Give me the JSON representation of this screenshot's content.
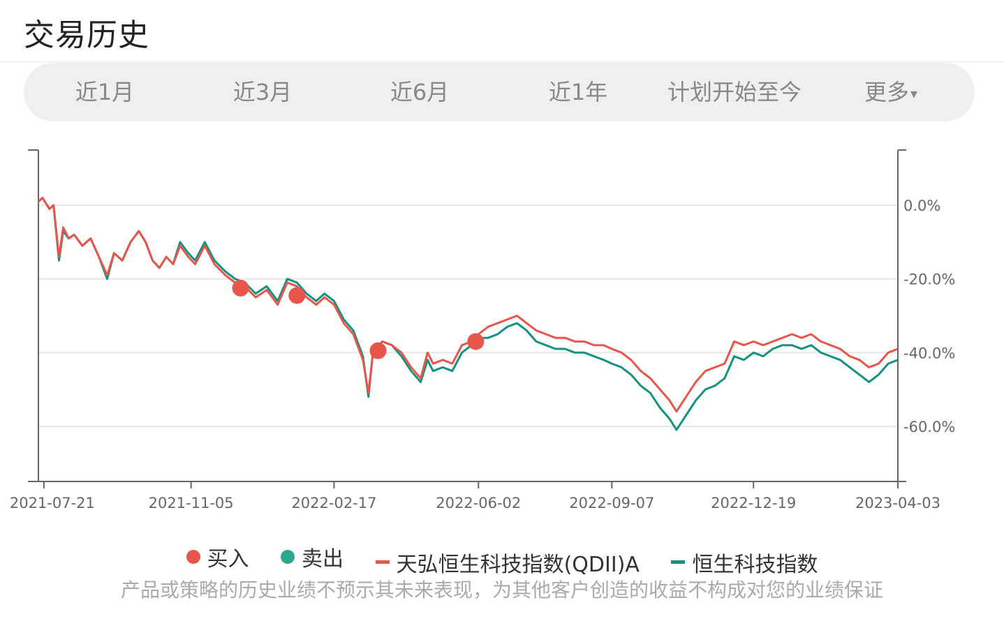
{
  "header": {
    "title": "交易历史"
  },
  "tabs": [
    {
      "label": "近1月"
    },
    {
      "label": "近3月"
    },
    {
      "label": "近6月"
    },
    {
      "label": "近1年"
    },
    {
      "label": "计划开始至今"
    },
    {
      "label": "更多",
      "caret": "▾"
    }
  ],
  "legend": {
    "buy": "买入",
    "sell": "卖出",
    "fund": "天弘恒生科技指数(QDII)A",
    "index": "恒生科技指数"
  },
  "disclaimer": "产品或策略的历史业绩不预示其未来表现，为其他客户创造的收益不构成对您的业绩保证",
  "colors": {
    "fund": "#e8554a",
    "index": "#139280",
    "buy": "#e8554a",
    "sell": "#2aa78f",
    "grid": "#e6e6e6",
    "axis": "#666666"
  },
  "chart_data": {
    "type": "line",
    "x_type": "date",
    "x_range": [
      "2021-07-17",
      "2023-04-03"
    ],
    "y_unit": "%",
    "ylim": [
      -75,
      15
    ],
    "yticks": [
      0,
      -20,
      -40,
      -60
    ],
    "ytick_labels": [
      "0.0%",
      "-20.0%",
      "-40.0%",
      "-60.0%"
    ],
    "xticks": [
      "2021-07-21",
      "2021-11-05",
      "2022-02-17",
      "2022-06-02",
      "2022-09-07",
      "2022-12-19",
      "2023-04-03"
    ],
    "grid": true,
    "legend_position": "bottom",
    "series": [
      {
        "name": "天弘恒生科技指数(QDII)A",
        "values": [
          [
            "2021-07-17",
            1
          ],
          [
            "2021-07-20",
            2
          ],
          [
            "2021-07-25",
            -1
          ],
          [
            "2021-07-28",
            0
          ],
          [
            "2021-08-01",
            -14
          ],
          [
            "2021-08-04",
            -6
          ],
          [
            "2021-08-08",
            -9
          ],
          [
            "2021-08-12",
            -8
          ],
          [
            "2021-08-18",
            -11
          ],
          [
            "2021-08-24",
            -9
          ],
          [
            "2021-08-30",
            -14
          ],
          [
            "2021-09-05",
            -19
          ],
          [
            "2021-09-10",
            -13
          ],
          [
            "2021-09-16",
            -15
          ],
          [
            "2021-09-22",
            -10
          ],
          [
            "2021-09-28",
            -7
          ],
          [
            "2021-10-03",
            -10
          ],
          [
            "2021-10-08",
            -15
          ],
          [
            "2021-10-13",
            -17
          ],
          [
            "2021-10-18",
            -14
          ],
          [
            "2021-10-23",
            -16
          ],
          [
            "2021-10-28",
            -11
          ],
          [
            "2021-11-03",
            -14
          ],
          [
            "2021-11-08",
            -16
          ],
          [
            "2021-11-15",
            -11
          ],
          [
            "2021-11-22",
            -16
          ],
          [
            "2021-11-30",
            -19
          ],
          [
            "2021-12-07",
            -21
          ],
          [
            "2021-12-14",
            -22
          ],
          [
            "2021-12-22",
            -25
          ],
          [
            "2021-12-30",
            -23
          ],
          [
            "2022-01-07",
            -27
          ],
          [
            "2022-01-14",
            -21
          ],
          [
            "2022-01-21",
            -22
          ],
          [
            "2022-01-28",
            -25
          ],
          [
            "2022-02-04",
            -27
          ],
          [
            "2022-02-10",
            -25
          ],
          [
            "2022-02-17",
            -27
          ],
          [
            "2022-02-24",
            -32
          ],
          [
            "2022-03-03",
            -35
          ],
          [
            "2022-03-10",
            -42
          ],
          [
            "2022-03-14",
            -51
          ],
          [
            "2022-03-17",
            -41
          ],
          [
            "2022-03-24",
            -37
          ],
          [
            "2022-03-31",
            -38
          ],
          [
            "2022-04-07",
            -40
          ],
          [
            "2022-04-14",
            -44
          ],
          [
            "2022-04-21",
            -47
          ],
          [
            "2022-04-26",
            -40
          ],
          [
            "2022-04-30",
            -43
          ],
          [
            "2022-05-07",
            -42
          ],
          [
            "2022-05-14",
            -43
          ],
          [
            "2022-05-21",
            -38
          ],
          [
            "2022-05-28",
            -37
          ],
          [
            "2022-06-02",
            -35
          ],
          [
            "2022-06-09",
            -33
          ],
          [
            "2022-06-16",
            -32
          ],
          [
            "2022-06-23",
            -31
          ],
          [
            "2022-06-30",
            -30
          ],
          [
            "2022-07-07",
            -32
          ],
          [
            "2022-07-14",
            -34
          ],
          [
            "2022-07-21",
            -35
          ],
          [
            "2022-07-28",
            -36
          ],
          [
            "2022-08-04",
            -36
          ],
          [
            "2022-08-11",
            -37
          ],
          [
            "2022-08-18",
            -37
          ],
          [
            "2022-08-25",
            -38
          ],
          [
            "2022-09-01",
            -38
          ],
          [
            "2022-09-07",
            -39
          ],
          [
            "2022-09-14",
            -40
          ],
          [
            "2022-09-21",
            -42
          ],
          [
            "2022-09-28",
            -45
          ],
          [
            "2022-10-05",
            -47
          ],
          [
            "2022-10-12",
            -50
          ],
          [
            "2022-10-19",
            -53
          ],
          [
            "2022-10-24",
            -56
          ],
          [
            "2022-10-31",
            -52
          ],
          [
            "2022-11-07",
            -48
          ],
          [
            "2022-11-14",
            -45
          ],
          [
            "2022-11-21",
            -44
          ],
          [
            "2022-11-28",
            -43
          ],
          [
            "2022-12-05",
            -37
          ],
          [
            "2022-12-12",
            -38
          ],
          [
            "2022-12-19",
            -37
          ],
          [
            "2022-12-26",
            -38
          ],
          [
            "2023-01-02",
            -37
          ],
          [
            "2023-01-09",
            -36
          ],
          [
            "2023-01-16",
            -35
          ],
          [
            "2023-01-23",
            -36
          ],
          [
            "2023-01-30",
            -35
          ],
          [
            "2023-02-06",
            -37
          ],
          [
            "2023-02-13",
            -38
          ],
          [
            "2023-02-20",
            -39
          ],
          [
            "2023-02-27",
            -41
          ],
          [
            "2023-03-06",
            -42
          ],
          [
            "2023-03-13",
            -44
          ],
          [
            "2023-03-20",
            -43
          ],
          [
            "2023-03-27",
            -40
          ],
          [
            "2023-04-03",
            -39
          ]
        ]
      },
      {
        "name": "恒生科技指数",
        "values": [
          [
            "2021-07-17",
            1
          ],
          [
            "2021-07-20",
            2
          ],
          [
            "2021-07-25",
            -1
          ],
          [
            "2021-07-28",
            0
          ],
          [
            "2021-08-01",
            -15
          ],
          [
            "2021-08-04",
            -7
          ],
          [
            "2021-08-08",
            -9
          ],
          [
            "2021-08-12",
            -8
          ],
          [
            "2021-08-18",
            -11
          ],
          [
            "2021-08-24",
            -9
          ],
          [
            "2021-08-30",
            -14
          ],
          [
            "2021-09-05",
            -20
          ],
          [
            "2021-09-10",
            -13
          ],
          [
            "2021-09-16",
            -15
          ],
          [
            "2021-09-22",
            -10
          ],
          [
            "2021-09-28",
            -7
          ],
          [
            "2021-10-03",
            -10
          ],
          [
            "2021-10-08",
            -15
          ],
          [
            "2021-10-13",
            -17
          ],
          [
            "2021-10-18",
            -14
          ],
          [
            "2021-10-23",
            -16
          ],
          [
            "2021-10-28",
            -10
          ],
          [
            "2021-11-03",
            -13
          ],
          [
            "2021-11-08",
            -15
          ],
          [
            "2021-11-15",
            -10
          ],
          [
            "2021-11-22",
            -15
          ],
          [
            "2021-11-30",
            -18
          ],
          [
            "2021-12-07",
            -20
          ],
          [
            "2021-12-14",
            -21
          ],
          [
            "2021-12-22",
            -24
          ],
          [
            "2021-12-30",
            -22
          ],
          [
            "2022-01-07",
            -26
          ],
          [
            "2022-01-14",
            -20
          ],
          [
            "2022-01-21",
            -21
          ],
          [
            "2022-01-28",
            -24
          ],
          [
            "2022-02-04",
            -26
          ],
          [
            "2022-02-10",
            -24
          ],
          [
            "2022-02-17",
            -26
          ],
          [
            "2022-02-24",
            -31
          ],
          [
            "2022-03-03",
            -34
          ],
          [
            "2022-03-10",
            -41
          ],
          [
            "2022-03-14",
            -52
          ],
          [
            "2022-03-17",
            -41
          ],
          [
            "2022-03-24",
            -37
          ],
          [
            "2022-03-31",
            -38
          ],
          [
            "2022-04-07",
            -41
          ],
          [
            "2022-04-14",
            -45
          ],
          [
            "2022-04-21",
            -48
          ],
          [
            "2022-04-26",
            -42
          ],
          [
            "2022-04-30",
            -45
          ],
          [
            "2022-05-07",
            -44
          ],
          [
            "2022-05-14",
            -45
          ],
          [
            "2022-05-21",
            -40
          ],
          [
            "2022-05-28",
            -38
          ],
          [
            "2022-06-02",
            -36
          ],
          [
            "2022-06-09",
            -36
          ],
          [
            "2022-06-16",
            -35
          ],
          [
            "2022-06-23",
            -33
          ],
          [
            "2022-06-30",
            -32
          ],
          [
            "2022-07-07",
            -34
          ],
          [
            "2022-07-14",
            -37
          ],
          [
            "2022-07-21",
            -38
          ],
          [
            "2022-07-28",
            -39
          ],
          [
            "2022-08-04",
            -39
          ],
          [
            "2022-08-11",
            -40
          ],
          [
            "2022-08-18",
            -40
          ],
          [
            "2022-08-25",
            -41
          ],
          [
            "2022-09-01",
            -42
          ],
          [
            "2022-09-07",
            -43
          ],
          [
            "2022-09-14",
            -44
          ],
          [
            "2022-09-21",
            -46
          ],
          [
            "2022-09-28",
            -49
          ],
          [
            "2022-10-05",
            -51
          ],
          [
            "2022-10-12",
            -55
          ],
          [
            "2022-10-19",
            -58
          ],
          [
            "2022-10-24",
            -61
          ],
          [
            "2022-10-31",
            -57
          ],
          [
            "2022-11-07",
            -53
          ],
          [
            "2022-11-14",
            -50
          ],
          [
            "2022-11-21",
            -49
          ],
          [
            "2022-11-28",
            -47
          ],
          [
            "2022-12-05",
            -41
          ],
          [
            "2022-12-12",
            -42
          ],
          [
            "2022-12-19",
            -40
          ],
          [
            "2022-12-26",
            -41
          ],
          [
            "2023-01-02",
            -39
          ],
          [
            "2023-01-09",
            -38
          ],
          [
            "2023-01-16",
            -38
          ],
          [
            "2023-01-23",
            -39
          ],
          [
            "2023-01-30",
            -38
          ],
          [
            "2023-02-06",
            -40
          ],
          [
            "2023-02-13",
            -41
          ],
          [
            "2023-02-20",
            -42
          ],
          [
            "2023-02-27",
            -44
          ],
          [
            "2023-03-06",
            -46
          ],
          [
            "2023-03-13",
            -48
          ],
          [
            "2023-03-20",
            -46
          ],
          [
            "2023-03-27",
            -43
          ],
          [
            "2023-04-03",
            -42
          ]
        ]
      }
    ],
    "markers": [
      {
        "type": "buy",
        "date": "2021-12-11",
        "value": -22.5
      },
      {
        "type": "buy",
        "date": "2022-01-21",
        "value": -24.5
      },
      {
        "type": "buy",
        "date": "2022-03-21",
        "value": -39.5
      },
      {
        "type": "buy",
        "date": "2022-05-31",
        "value": -37
      }
    ]
  }
}
